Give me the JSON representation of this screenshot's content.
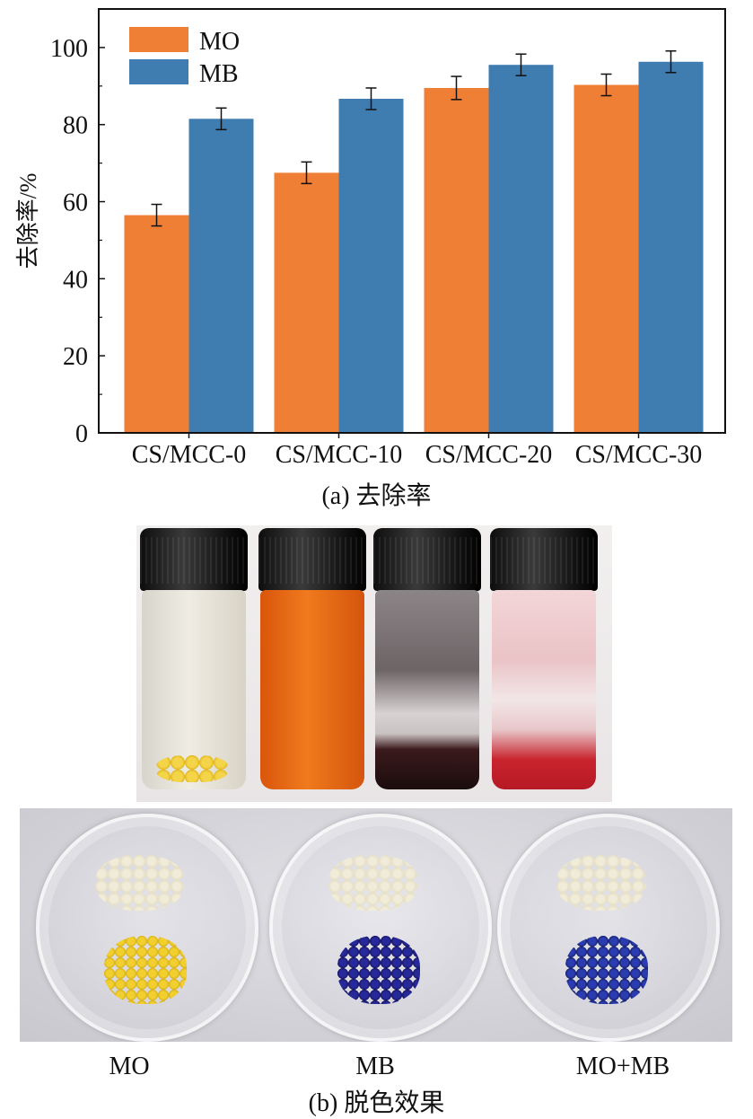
{
  "chart_data": {
    "type": "bar",
    "categories": [
      "CS/MCC-0",
      "CS/MCC-10",
      "CS/MCC-20",
      "CS/MCC-30"
    ],
    "series": [
      {
        "name": "MO",
        "values": [
          56.5,
          67.5,
          89.5,
          90.3
        ],
        "errors": [
          2.8,
          2.8,
          3.0,
          2.8
        ],
        "color": "#f07f36"
      },
      {
        "name": "MB",
        "values": [
          81.5,
          86.7,
          95.5,
          96.3
        ],
        "errors": [
          2.8,
          2.8,
          2.8,
          2.8
        ],
        "color": "#3f7cb0"
      }
    ],
    "ylabel": "去除率/%",
    "yticks": [
      0,
      20,
      40,
      60,
      80,
      100
    ],
    "ylim": [
      0,
      110
    ],
    "legend_position": "top-left",
    "grid": false
  },
  "captions": {
    "a": "(a) 去除率",
    "b": "(b) 脱色效果"
  },
  "photo_labels": [
    "MO",
    "MB",
    "MO+MB"
  ]
}
